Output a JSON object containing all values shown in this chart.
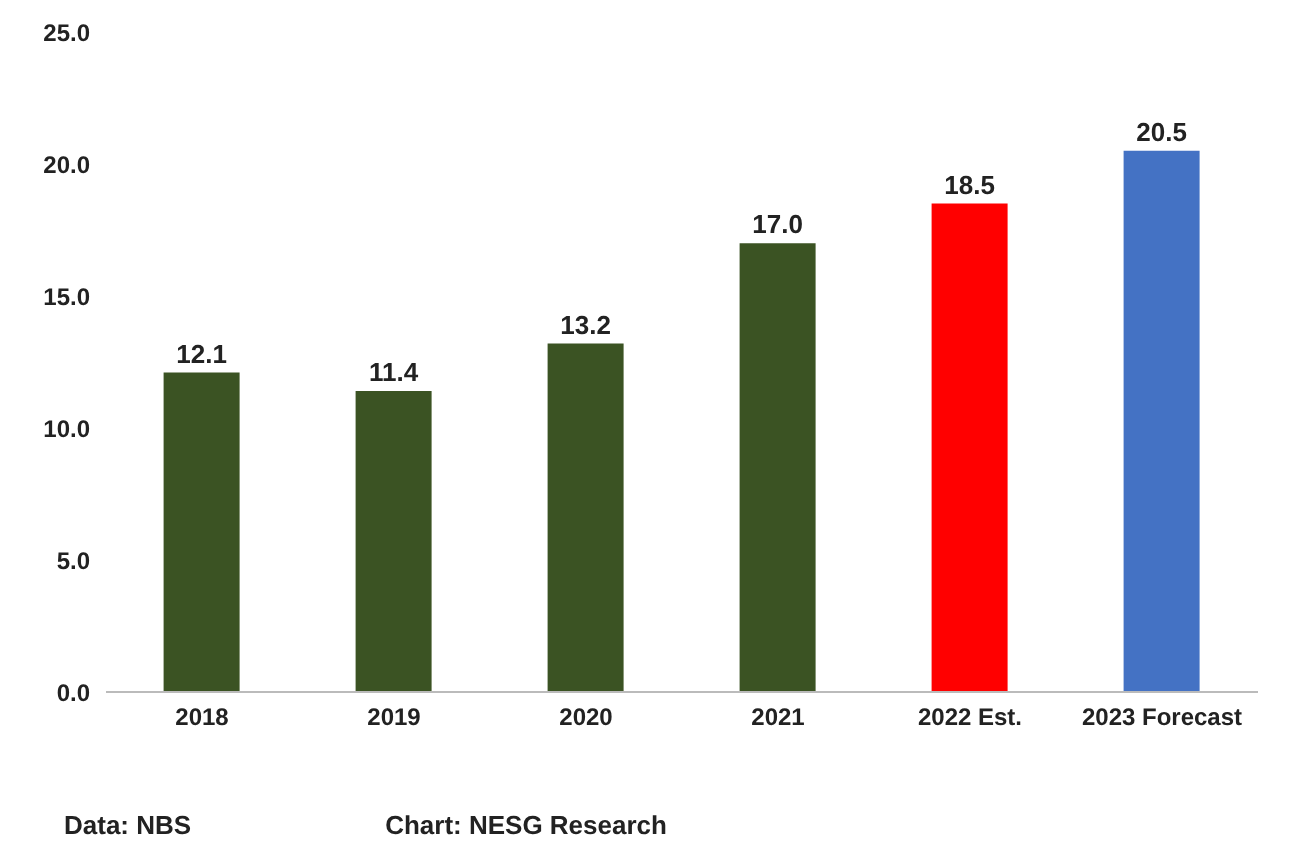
{
  "chart_data": {
    "type": "bar",
    "categories": [
      "2018",
      "2019",
      "2020",
      "2021",
      "2022 Est.",
      "2023 Forecast"
    ],
    "values": [
      12.1,
      11.4,
      13.2,
      17.0,
      18.5,
      20.5
    ],
    "colors": [
      "#3b5323",
      "#3b5323",
      "#3b5323",
      "#3b5323",
      "#ff0000",
      "#4472c4"
    ],
    "ylim": [
      0,
      25
    ],
    "yticks": [
      {
        "value": 0,
        "label": "0.0"
      },
      {
        "value": 5,
        "label": "5.0"
      },
      {
        "value": 10,
        "label": "10.0"
      },
      {
        "value": 15,
        "label": "15.0"
      },
      {
        "value": 20,
        "label": "20.0"
      },
      {
        "value": 25,
        "label": "25.0"
      }
    ],
    "value_labels": [
      "12.1",
      "11.4",
      "13.2",
      "17.0",
      "18.5",
      "20.5"
    ],
    "grid": false,
    "annotations": [
      "Data: NBS",
      "Chart: NESG Research"
    ]
  }
}
